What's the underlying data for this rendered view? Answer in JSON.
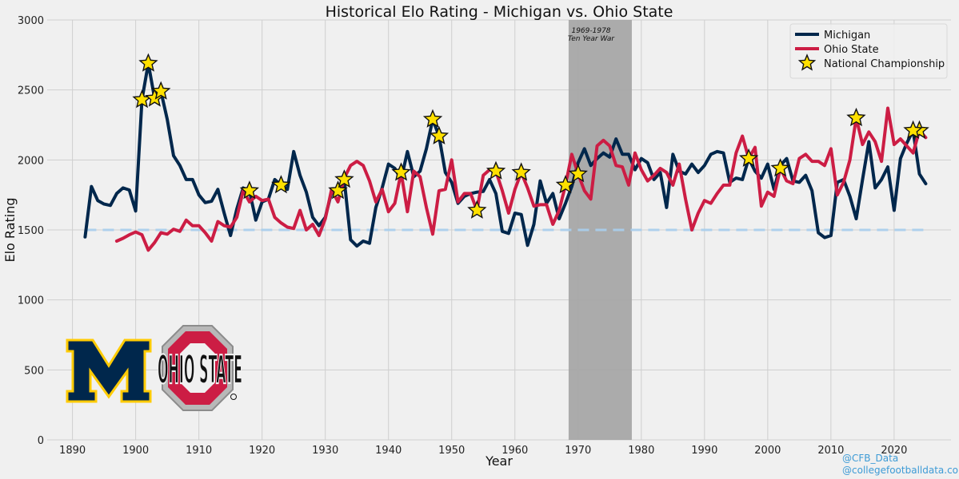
{
  "chart_data": {
    "type": "line",
    "title": "Historical Elo Rating - Michigan vs. Ohio State",
    "xlabel": "Year",
    "ylabel": "Elo Rating",
    "xlim": [
      1886,
      2029
    ],
    "ylim": [
      0,
      3000
    ],
    "xticks": [
      1890,
      1900,
      1910,
      1920,
      1930,
      1940,
      1950,
      1960,
      1970,
      1980,
      1990,
      2000,
      2010,
      2020
    ],
    "yticks": [
      0,
      500,
      1000,
      1500,
      2000,
      2500,
      3000
    ],
    "grid": true,
    "legend_position": "top-right",
    "baseline": {
      "value": 1500,
      "color": "#a9cfee"
    },
    "shaded_region": {
      "x_start": 1968.5,
      "x_end": 1978.5,
      "label_line1": "1969-1978",
      "label_line2": "Ten Year War",
      "color": "#a6a6a6"
    },
    "series": [
      {
        "name": "Michigan",
        "color": "#00274c",
        "x": [
          1892,
          1893,
          1894,
          1895,
          1896,
          1897,
          1898,
          1899,
          1900,
          1901,
          1902,
          1903,
          1904,
          1905,
          1906,
          1907,
          1908,
          1909,
          1910,
          1911,
          1912,
          1913,
          1914,
          1915,
          1916,
          1917,
          1918,
          1919,
          1920,
          1921,
          1922,
          1923,
          1924,
          1925,
          1926,
          1927,
          1928,
          1929,
          1930,
          1931,
          1932,
          1933,
          1934,
          1935,
          1936,
          1937,
          1938,
          1939,
          1940,
          1941,
          1942,
          1943,
          1944,
          1945,
          1946,
          1947,
          1948,
          1949,
          1950,
          1951,
          1952,
          1953,
          1954,
          1955,
          1956,
          1957,
          1958,
          1959,
          1960,
          1961,
          1962,
          1963,
          1964,
          1965,
          1966,
          1967,
          1968,
          1969,
          1970,
          1971,
          1972,
          1973,
          1974,
          1975,
          1976,
          1977,
          1978,
          1979,
          1980,
          1981,
          1982,
          1983,
          1984,
          1985,
          1986,
          1987,
          1988,
          1989,
          1990,
          1991,
          1992,
          1993,
          1994,
          1995,
          1996,
          1997,
          1998,
          1999,
          2000,
          2001,
          2002,
          2003,
          2004,
          2005,
          2006,
          2007,
          2008,
          2009,
          2010,
          2011,
          2012,
          2013,
          2014,
          2015,
          2016,
          2017,
          2018,
          2019,
          2020,
          2021,
          2022,
          2023,
          2024,
          2025
        ],
        "y": [
          1450,
          1810,
          1710,
          1685,
          1675,
          1760,
          1800,
          1785,
          1635,
          2430,
          2690,
          2440,
          2490,
          2290,
          2030,
          1960,
          1860,
          1860,
          1750,
          1695,
          1705,
          1790,
          1620,
          1460,
          1650,
          1800,
          1780,
          1570,
          1700,
          1720,
          1860,
          1820,
          1790,
          2060,
          1890,
          1770,
          1590,
          1530,
          1590,
          1770,
          1780,
          1860,
          1430,
          1385,
          1420,
          1405,
          1660,
          1800,
          1970,
          1940,
          1860,
          2060,
          1880,
          1920,
          2080,
          2290,
          2170,
          1910,
          1840,
          1690,
          1740,
          1760,
          1770,
          1775,
          1860,
          1760,
          1490,
          1475,
          1620,
          1610,
          1390,
          1540,
          1850,
          1690,
          1760,
          1580,
          1690,
          1810,
          1980,
          2080,
          1960,
          2010,
          2050,
          2020,
          2150,
          2040,
          2040,
          1930,
          2010,
          1980,
          1860,
          1910,
          1660,
          2040,
          1920,
          1900,
          1970,
          1910,
          1960,
          2040,
          2060,
          2050,
          1840,
          1870,
          1860,
          2010,
          1920,
          1870,
          1970,
          1790,
          1960,
          2010,
          1850,
          1840,
          1890,
          1780,
          1480,
          1445,
          1460,
          1840,
          1860,
          1740,
          1580,
          1860,
          2130,
          1800,
          1860,
          1950,
          1640,
          2010,
          2120,
          2210,
          1900,
          1830
        ]
      },
      {
        "name": "Ohio State",
        "color": "#cc1d44",
        "x": [
          1897,
          1898,
          1899,
          1900,
          1901,
          1902,
          1903,
          1904,
          1905,
          1906,
          1907,
          1908,
          1909,
          1910,
          1911,
          1912,
          1913,
          1914,
          1915,
          1916,
          1917,
          1918,
          1919,
          1920,
          1921,
          1922,
          1923,
          1924,
          1925,
          1926,
          1927,
          1928,
          1929,
          1930,
          1931,
          1932,
          1933,
          1934,
          1935,
          1936,
          1937,
          1938,
          1939,
          1940,
          1941,
          1942,
          1943,
          1944,
          1945,
          1946,
          1947,
          1948,
          1949,
          1950,
          1951,
          1952,
          1953,
          1954,
          1955,
          1956,
          1957,
          1958,
          1959,
          1960,
          1961,
          1962,
          1963,
          1964,
          1965,
          1966,
          1967,
          1968,
          1969,
          1970,
          1971,
          1972,
          1973,
          1974,
          1975,
          1976,
          1977,
          1978,
          1979,
          1980,
          1981,
          1982,
          1983,
          1984,
          1985,
          1986,
          1987,
          1988,
          1989,
          1990,
          1991,
          1992,
          1993,
          1994,
          1995,
          1996,
          1997,
          1998,
          1999,
          2000,
          2001,
          2002,
          2003,
          2004,
          2005,
          2006,
          2007,
          2008,
          2009,
          2010,
          2011,
          2012,
          2013,
          2014,
          2015,
          2016,
          2017,
          2018,
          2019,
          2020,
          2021,
          2022,
          2023,
          2024,
          2025
        ],
        "y": [
          1420,
          1440,
          1465,
          1485,
          1465,
          1355,
          1410,
          1480,
          1470,
          1505,
          1490,
          1570,
          1530,
          1530,
          1480,
          1420,
          1560,
          1530,
          1520,
          1590,
          1780,
          1700,
          1740,
          1710,
          1720,
          1590,
          1550,
          1520,
          1510,
          1640,
          1500,
          1540,
          1460,
          1580,
          1790,
          1700,
          1870,
          1960,
          1990,
          1960,
          1850,
          1700,
          1790,
          1630,
          1690,
          1910,
          1630,
          1920,
          1880,
          1660,
          1470,
          1780,
          1790,
          2000,
          1700,
          1760,
          1760,
          1640,
          1890,
          1930,
          1920,
          1780,
          1620,
          1790,
          1910,
          1800,
          1670,
          1680,
          1680,
          1540,
          1640,
          1820,
          2040,
          1900,
          1780,
          1720,
          2100,
          2140,
          2100,
          1960,
          1950,
          1820,
          2050,
          1930,
          1850,
          1890,
          1940,
          1910,
          1820,
          1970,
          1720,
          1500,
          1620,
          1710,
          1690,
          1760,
          1820,
          1820,
          2050,
          2170,
          2010,
          2090,
          1670,
          1770,
          1740,
          1940,
          1850,
          1830,
          2010,
          2040,
          1990,
          1990,
          1960,
          2080,
          1750,
          1840,
          2000,
          2300,
          2110,
          2200,
          2130,
          1990,
          2370,
          2110,
          2150,
          2100,
          2050,
          2210,
          2160
        ]
      }
    ],
    "championships": {
      "name": "National Championship",
      "fill": "#ffe000",
      "stroke": "#111111",
      "michigan_years": [
        1901,
        1902,
        1903,
        1904,
        1918,
        1923,
        1932,
        1933,
        1947,
        1948,
        1997,
        2023
      ],
      "ohio_state_years": [
        1942,
        1954,
        1957,
        1961,
        1968,
        1970,
        2002,
        2014,
        2024
      ]
    },
    "credits": [
      "@CFB_Data",
      "@collegefootballdata.com"
    ],
    "logos": [
      {
        "name": "michigan-block-m-logo",
        "text": "M",
        "colors": [
          "#00274c",
          "#ffcb05"
        ]
      },
      {
        "name": "ohio-state-logo",
        "text": "OHIO STATE",
        "colors": [
          "#cc1d44",
          "#9a9a9a"
        ]
      }
    ]
  }
}
